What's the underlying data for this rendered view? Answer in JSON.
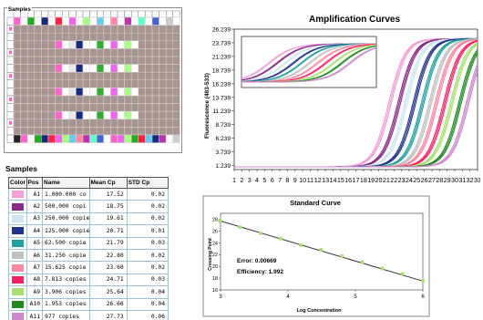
{
  "plate": {
    "title": "Samples",
    "rows": 16,
    "cols": 24,
    "base_color": "#a69592",
    "highlight_rows": [
      {
        "row": 3,
        "colors": [
          "#ff66cc",
          "#ffffff",
          "#e8e8e8",
          "#1a2a7a",
          "#ffffff",
          "#ffffff",
          "#33aa33",
          "#ffffff",
          "#ee66ee",
          "#ffffff",
          "#aaff88",
          "#ffffff"
        ]
      },
      {
        "row": 6,
        "colors": [
          "#ff66cc",
          "#ffffff",
          "#e8e8e8",
          "#1a2a7a",
          "#ffffff",
          "#ffffff",
          "#33aa33",
          "#ffffff",
          "#ee66ee",
          "#ffffff",
          "#aaff88",
          "#ffffff"
        ]
      },
      {
        "row": 9,
        "colors": [
          "#ff66cc",
          "#ffffff",
          "#e8e8e8",
          "#1a2a7a",
          "#ffffff",
          "#ffffff",
          "#33aa33",
          "#ffffff",
          "#ee66ee",
          "#ffffff",
          "#aaff88",
          "#ffffff"
        ]
      },
      {
        "row": 12,
        "colors": [
          "#ff66cc",
          "#ffffff",
          "#e8e8e8",
          "#1a2a7a",
          "#ffffff",
          "#ffffff",
          "#33aa33",
          "#ffffff",
          "#ee66ee",
          "#ffffff",
          "#aaff88",
          "#ffffff"
        ]
      }
    ],
    "first_row_colors": [
      "#ff66cc",
      "#ffffff",
      "#22aa22",
      "#ffffff",
      "#1a2a7a",
      "#ffffff",
      "#ff2244",
      "#ffffff",
      "#ee66ee",
      "#ffffff",
      "#aaff88",
      "#ffffff",
      "#66ccee",
      "#ffffff",
      "#ff88aa",
      "#ffffff",
      "#bb33aa",
      "#ffffff",
      "#66ffcc",
      "#ffffff",
      "#4466cc",
      "#ffffff",
      "#cccccc",
      "#ffffff"
    ],
    "bottom_row_colors": [
      "#222222",
      "#ff66cc",
      "#ffffff",
      "#22aa22",
      "#1a2a7a",
      "#ff2244",
      "#ee66ee",
      "#aaff88",
      "#66ccee",
      "#ff88aa",
      "#bb33aa",
      "#66ffcc",
      "#4466cc",
      "#ffffff",
      "#ff66cc",
      "#ee66ee",
      "#aaff88",
      "#22aa22",
      "#ff2244",
      "#66ccee",
      "#1a2a7a",
      "#bb33aa",
      "#ffffff",
      "#cccccc"
    ]
  },
  "samples": {
    "heading": "Samples",
    "columns": {
      "color": "Color",
      "pos": "Pos",
      "name": "Name",
      "mean_cp": "Mean Cp",
      "std_cp": "STD Cp"
    },
    "rows": [
      {
        "color": "#f2a0d6",
        "pos": "A1",
        "name": "1.000.000 co",
        "mean_cp": "17.52",
        "std_cp": "0.02"
      },
      {
        "color": "#8a2a86",
        "pos": "A2",
        "name": "500.000 copi",
        "mean_cp": "18.75",
        "std_cp": "0.02"
      },
      {
        "color": "#cfe6f2",
        "pos": "A3",
        "name": "250.000 copie",
        "mean_cp": "19.61",
        "std_cp": "0.02"
      },
      {
        "color": "#22348a",
        "pos": "A4",
        "name": "125.000 copie",
        "mean_cp": "20.71",
        "std_cp": "0.01"
      },
      {
        "color": "#22a0a0",
        "pos": "A5",
        "name": "62.500 copie",
        "mean_cp": "21.79",
        "std_cp": "0.03"
      },
      {
        "color": "#c0c0c0",
        "pos": "A6",
        "name": "31.250 copie",
        "mean_cp": "22.80",
        "std_cp": "0.02"
      },
      {
        "color": "#ff88a0",
        "pos": "A7",
        "name": "15.625 copie",
        "mean_cp": "23.60",
        "std_cp": "0.02"
      },
      {
        "color": "#ff2266",
        "pos": "A8",
        "name": "7.813 copies",
        "mean_cp": "24.71",
        "std_cp": "0.03"
      },
      {
        "color": "#a8e070",
        "pos": "A9",
        "name": "3.906 copies",
        "mean_cp": "25.64",
        "std_cp": "0.04"
      },
      {
        "color": "#228822",
        "pos": "A10",
        "name": "1.953 copies",
        "mean_cp": "26.66",
        "std_cp": "0.04"
      },
      {
        "color": "#cc88cc",
        "pos": "A11",
        "name": "977 copies",
        "mean_cp": "27.73",
        "std_cp": "0.06"
      }
    ]
  },
  "chart_data": [
    {
      "type": "line",
      "title": "Amplification Curves",
      "ylabel": "Fluorescence (483-533)",
      "xlabel": "",
      "x": [
        1,
        2,
        3,
        4,
        5,
        6,
        7,
        8,
        9,
        10,
        11,
        12,
        13,
        14,
        15,
        16,
        17,
        18,
        19,
        20,
        21,
        22,
        23,
        24,
        25,
        26,
        27,
        28,
        29,
        30,
        31,
        32,
        33
      ],
      "ylim": [
        0.5,
        26.239
      ],
      "xlim": [
        1,
        33
      ],
      "yticks": [
        "26.239",
        "23.739",
        "21.239",
        "18.739",
        "16.239",
        "13.739",
        "11.239",
        "8.739",
        "6.239",
        "3.739",
        "1.239"
      ],
      "ytick_values": [
        26.239,
        23.739,
        21.239,
        18.739,
        16.239,
        13.739,
        11.239,
        8.739,
        6.239,
        3.739,
        1.239
      ],
      "xticks": [
        "1",
        "2",
        "3",
        "4",
        "5",
        "6",
        "7",
        "8",
        "9",
        "10",
        "11",
        "12",
        "13",
        "14",
        "15",
        "16",
        "17",
        "18",
        "19",
        "20",
        "21",
        "22",
        "23",
        "24",
        "25",
        "26",
        "27",
        "28",
        "29",
        "30",
        "31",
        "32",
        "33"
      ],
      "baseline": 1.0,
      "plateau": 24.5,
      "series": [
        {
          "color": "#f2a0d6",
          "midpoint": 21.5
        },
        {
          "color": "#8a2a86",
          "midpoint": 22.7
        },
        {
          "color": "#cfe6f2",
          "midpoint": 23.6
        },
        {
          "color": "#22348a",
          "midpoint": 24.7
        },
        {
          "color": "#22a0a0",
          "midpoint": 25.8
        },
        {
          "color": "#c0c0c0",
          "midpoint": 26.8
        },
        {
          "color": "#ff88a0",
          "midpoint": 27.6
        },
        {
          "color": "#ff2266",
          "midpoint": 28.7
        },
        {
          "color": "#a8e070",
          "midpoint": 29.6
        },
        {
          "color": "#228822",
          "midpoint": 30.7
        },
        {
          "color": "#cc88cc",
          "midpoint": 31.7
        }
      ],
      "grid": false
    },
    {
      "type": "scatter",
      "title": "Standard Curve",
      "xlabel": "Log Concentration",
      "ylabel": "Crossing Point",
      "xlim": [
        3,
        6
      ],
      "ylim": [
        16,
        29
      ],
      "xticks": [
        "3",
        "4",
        "5",
        "6"
      ],
      "yticks": [
        "28",
        "26",
        "24",
        "22",
        "20",
        "18",
        "16"
      ],
      "ytick_values": [
        28,
        26,
        24,
        22,
        20,
        18,
        16
      ],
      "xtick_values": [
        3,
        4,
        5,
        6
      ],
      "points": [
        {
          "x": 6.0,
          "y": 17.52
        },
        {
          "x": 5.7,
          "y": 18.75
        },
        {
          "x": 5.4,
          "y": 19.61
        },
        {
          "x": 5.1,
          "y": 20.71
        },
        {
          "x": 4.8,
          "y": 21.79
        },
        {
          "x": 4.49,
          "y": 22.8
        },
        {
          "x": 4.19,
          "y": 23.6
        },
        {
          "x": 3.89,
          "y": 24.71
        },
        {
          "x": 3.59,
          "y": 25.64
        },
        {
          "x": 3.29,
          "y": 26.66
        },
        {
          "x": 2.99,
          "y": 27.73
        }
      ],
      "fit_line": {
        "x": [
          3,
          6
        ],
        "y": [
          27.7,
          17.5
        ]
      },
      "point_color": "#a8e070",
      "line_color": "#333333",
      "annotations": {
        "error": "Error: 0.00669",
        "efficiency": "Efficiency: 1.992"
      }
    }
  ]
}
